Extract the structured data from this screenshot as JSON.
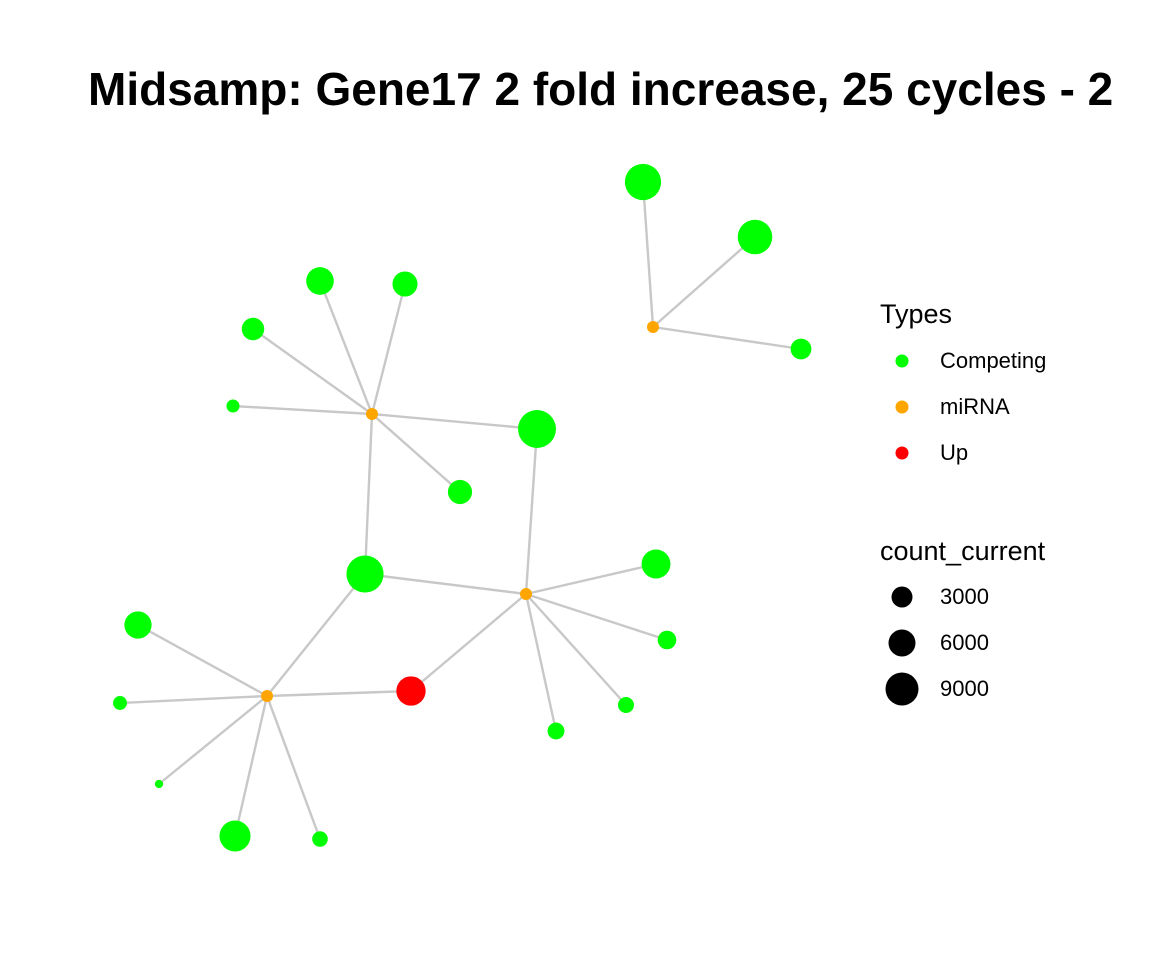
{
  "title": "Midsamp: Gene17 2 fold increase, 25 cycles - 2",
  "colors": {
    "edge": "#c8c8c8",
    "Competing": "#00ff00",
    "miRNA": "#ffa500",
    "Up": "#ff0000"
  },
  "legend": {
    "types_title": "Types",
    "types": [
      {
        "label": "Competing",
        "color": "#00ff00"
      },
      {
        "label": "miRNA",
        "color": "#ffa500"
      },
      {
        "label": "Up",
        "color": "#ff0000"
      }
    ],
    "size_title": "count_current",
    "sizes": [
      {
        "label": "3000",
        "value": 3000
      },
      {
        "label": "6000",
        "value": 6000
      },
      {
        "label": "9000",
        "value": 9000
      }
    ]
  },
  "graph": {
    "nodes": [
      {
        "id": "m1",
        "type": "miRNA"
      },
      {
        "id": "m2",
        "type": "miRNA"
      },
      {
        "id": "m3",
        "type": "miRNA"
      },
      {
        "id": "m4",
        "type": "miRNA"
      },
      {
        "id": "up1",
        "type": "Up",
        "count": 5200
      },
      {
        "id": "c1",
        "type": "Competing",
        "count": 6800
      },
      {
        "id": "c2",
        "type": "Competing",
        "count": 6400
      },
      {
        "id": "c3",
        "type": "Competing",
        "count": 3200
      },
      {
        "id": "c4",
        "type": "Competing",
        "count": 4800
      },
      {
        "id": "c5",
        "type": "Competing",
        "count": 4200
      },
      {
        "id": "c6",
        "type": "Competing",
        "count": 3600
      },
      {
        "id": "c7",
        "type": "Competing",
        "count": 1400
      },
      {
        "id": "c8",
        "type": "Competing",
        "count": 4000
      },
      {
        "id": "c9",
        "type": "Competing",
        "count": 7200
      },
      {
        "id": "c10",
        "type": "Competing",
        "count": 7000
      },
      {
        "id": "c11",
        "type": "Competing",
        "count": 6900
      },
      {
        "id": "c12",
        "type": "Competing",
        "count": 5100
      },
      {
        "id": "c13",
        "type": "Competing",
        "count": 2700
      },
      {
        "id": "c14",
        "type": "Competing",
        "count": 2100
      },
      {
        "id": "c15",
        "type": "Competing",
        "count": 2300
      },
      {
        "id": "c16",
        "type": "Competing",
        "count": 4700
      },
      {
        "id": "c17",
        "type": "Competing",
        "count": 1600
      },
      {
        "id": "c18",
        "type": "Competing",
        "count": 300
      },
      {
        "id": "c19",
        "type": "Competing",
        "count": 5600
      },
      {
        "id": "c20",
        "type": "Competing",
        "count": 2000
      }
    ],
    "edges": [
      [
        "m1",
        "c1"
      ],
      [
        "m1",
        "c2"
      ],
      [
        "m1",
        "c3"
      ],
      [
        "m2",
        "c4"
      ],
      [
        "m2",
        "c5"
      ],
      [
        "m2",
        "c6"
      ],
      [
        "m2",
        "c7"
      ],
      [
        "m2",
        "c8"
      ],
      [
        "m2",
        "c9"
      ],
      [
        "m2",
        "c10"
      ],
      [
        "m3",
        "c10"
      ],
      [
        "m3",
        "c9"
      ],
      [
        "m3",
        "c12"
      ],
      [
        "m3",
        "c13"
      ],
      [
        "m3",
        "c14"
      ],
      [
        "m3",
        "c15"
      ],
      [
        "m3",
        "up1"
      ],
      [
        "m4",
        "c11"
      ],
      [
        "m4",
        "c16"
      ],
      [
        "m4",
        "c17"
      ],
      [
        "m4",
        "c18"
      ],
      [
        "m4",
        "c19"
      ],
      [
        "m4",
        "c20"
      ],
      [
        "m4",
        "up1"
      ]
    ]
  }
}
